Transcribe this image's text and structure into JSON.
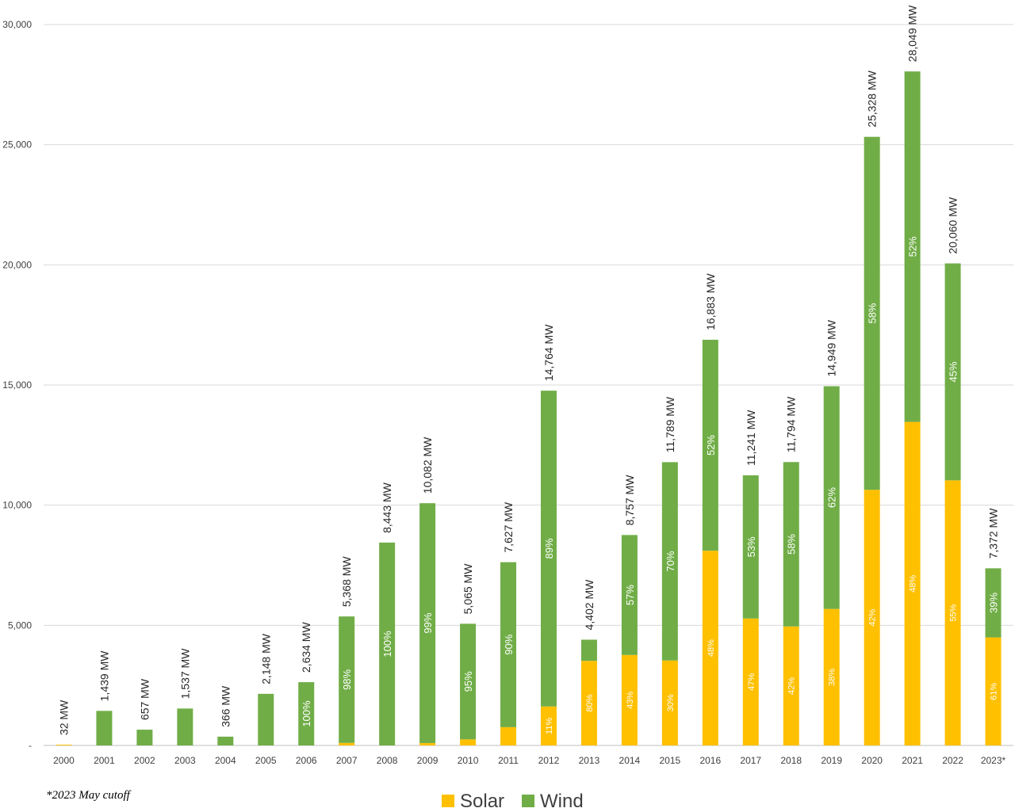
{
  "chart_data": {
    "type": "bar",
    "stacked": true,
    "title": "",
    "xlabel": "",
    "ylabel": "",
    "ylim": [
      0,
      30000
    ],
    "yticks": [
      {
        "value": 0,
        "label": "-"
      },
      {
        "value": 5000,
        "label": "5,000"
      },
      {
        "value": 10000,
        "label": "10,000"
      },
      {
        "value": 15000,
        "label": "15,000"
      },
      {
        "value": 20000,
        "label": "20,000"
      },
      {
        "value": 25000,
        "label": "25,000"
      },
      {
        "value": 30000,
        "label": "30,000"
      }
    ],
    "grid": true,
    "legend_position": "bottom",
    "colors": {
      "solar": "#FFC000",
      "wind": "#70AD47",
      "grid": "#d9d9d9",
      "axis": "#bfbfbf"
    },
    "categories": [
      "2000",
      "2001",
      "2002",
      "2003",
      "2004",
      "2005",
      "2006",
      "2007",
      "2008",
      "2009",
      "2010",
      "2011",
      "2012",
      "2013",
      "2014",
      "2015",
      "2016",
      "2017",
      "2018",
      "2019",
      "2020",
      "2021",
      "2022",
      "2023*"
    ],
    "series": [
      {
        "name": "Solar",
        "values": [
          32,
          0,
          0,
          0,
          0,
          0,
          0,
          107,
          0,
          101,
          253,
          763,
          1624,
          3522,
          3766,
          3537,
          8104,
          5283,
          4953,
          5681,
          10638,
          13464,
          11033,
          4497
        ]
      },
      {
        "name": "Wind",
        "values": [
          0,
          1439,
          657,
          1537,
          366,
          2148,
          2634,
          5261,
          8443,
          9981,
          4812,
          6864,
          13140,
          880,
          4991,
          8252,
          8779,
          5958,
          6841,
          9268,
          14690,
          14585,
          9027,
          2875
        ]
      }
    ],
    "totals": [
      "32 MW",
      "1,439 MW",
      "657 MW",
      "1,537 MW",
      "366 MW",
      "2,148 MW",
      "2,634 MW",
      "5,368 MW",
      "8,443 MW",
      "10,082 MW",
      "5,065 MW",
      "7,627 MW",
      "14,764 MW",
      "4,402 MW",
      "8,757 MW",
      "11,789 MW",
      "16,883 MW",
      "11,241 MW",
      "11,794 MW",
      "14,949 MW",
      "25,328 MW",
      "28,049 MW",
      "20,060 MW",
      "7,372 MW"
    ],
    "wind_pct": [
      "",
      "",
      "",
      "",
      "",
      "",
      "100%",
      "98%",
      "100%",
      "99%",
      "95%",
      "90%",
      "89%",
      "",
      "57%",
      "70%",
      "52%",
      "53%",
      "58%",
      "62%",
      "58%",
      "52%",
      "45%",
      "39%"
    ],
    "solar_pct": [
      "",
      "",
      "",
      "",
      "",
      "",
      "",
      "",
      "",
      "",
      "",
      "",
      "11%",
      "80%",
      "43%",
      "30%",
      "48%",
      "47%",
      "42%",
      "38%",
      "42%",
      "48%",
      "55%",
      "61%"
    ],
    "legend": [
      {
        "name": "Solar",
        "color": "#FFC000"
      },
      {
        "name": "Wind",
        "color": "#70AD47"
      }
    ],
    "footnote": "*2023 May cutoff"
  }
}
